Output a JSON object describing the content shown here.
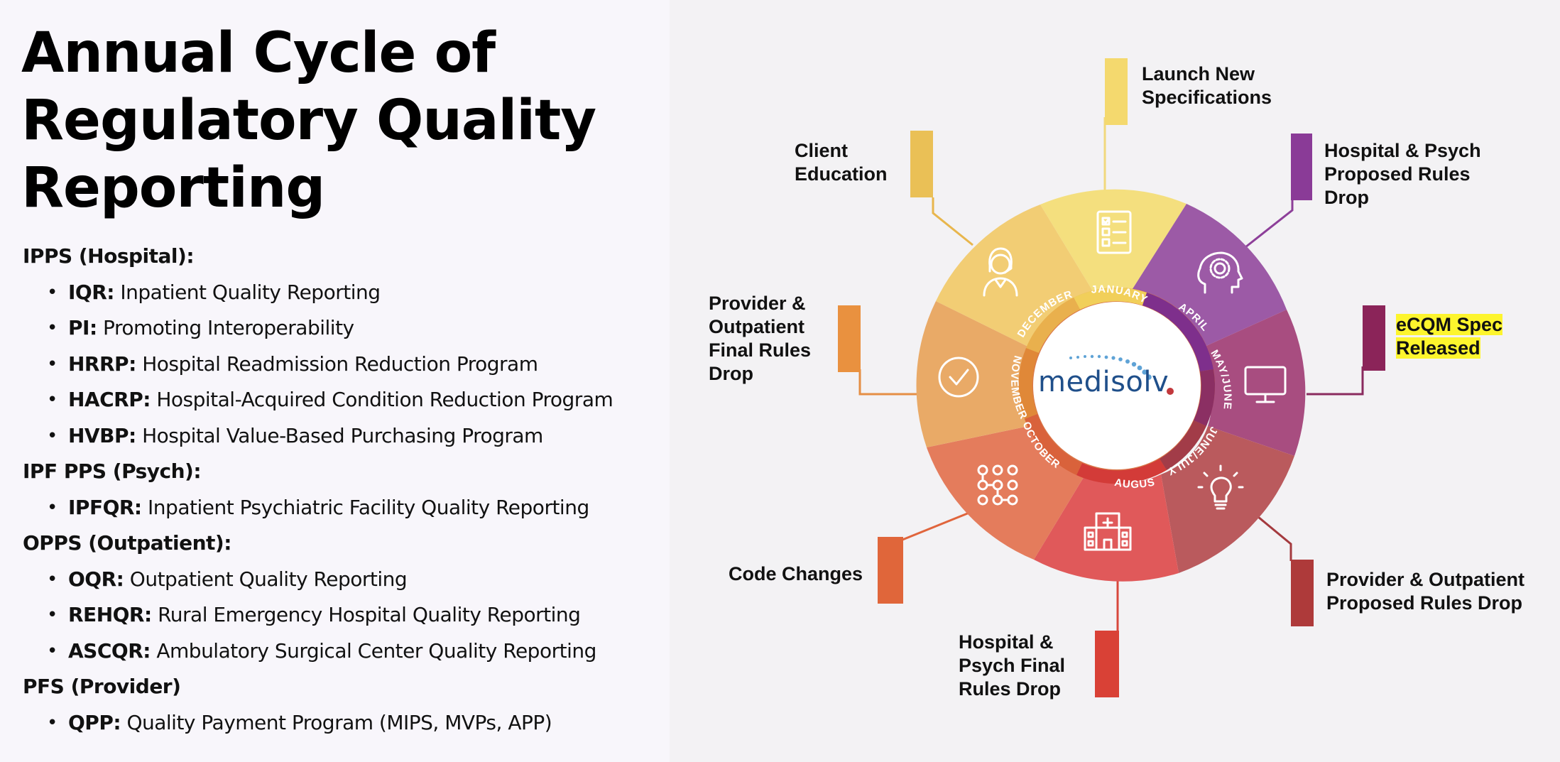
{
  "title": "Annual Cycle of Regulatory Quality Reporting",
  "sections": [
    {
      "heading": "IPPS (Hospital):",
      "items": [
        {
          "abbr": "IQR:",
          "desc": "Inpatient Quality Reporting"
        },
        {
          "abbr": "PI:",
          "desc": "Promoting Interoperability"
        },
        {
          "abbr": "HRRP:",
          "desc": "Hospital Readmission Reduction Program"
        },
        {
          "abbr": "HACRP:",
          "desc": "Hospital-Acquired Condition Reduction Program"
        },
        {
          "abbr": "HVBP:",
          "desc": "Hospital Value-Based Purchasing Program"
        }
      ]
    },
    {
      "heading": "IPF PPS (Psych):",
      "items": [
        {
          "abbr": "IPFQR:",
          "desc": "Inpatient Psychiatric Facility Quality Reporting"
        }
      ]
    },
    {
      "heading": "OPPS (Outpatient):",
      "items": [
        {
          "abbr": "OQR:",
          "desc": "Outpatient Quality Reporting"
        },
        {
          "abbr": "REHQR:",
          "desc": "Rural Emergency Hospital Quality Reporting"
        },
        {
          "abbr": "ASCQR:",
          "desc": "Ambulatory Surgical Center Quality Reporting"
        }
      ]
    },
    {
      "heading": "PFS (Provider)",
      "items": [
        {
          "abbr": "QPP:",
          "desc": "Quality Payment Program (MIPS, MVPs, APP)"
        }
      ]
    }
  ],
  "logo": "medisolv",
  "months": [
    "JANUARY",
    "APRIL",
    "MAY/JUNE",
    "JUNE/JULY",
    "AUGUST",
    "OCTOBER",
    "NOVEMBER",
    "DECEMBER"
  ],
  "callouts": {
    "launch": "Launch New\nSpecifications",
    "hospital_proposed": "Hospital & Psych\nProposed Rules\nDrop",
    "ecqm": "eCQM Spec\nReleased",
    "provider_proposed": "Provider & Outpatient\nProposed Rules Drop",
    "hospital_final": "Hospital &\nPsych Final\nRules Drop",
    "code_changes": "Code Changes",
    "provider_final": "Provider &\nOutpatient\nFinal Rules\nDrop",
    "client_education": "Client\nEducation"
  },
  "colors": {
    "launch": "#f4df7e",
    "hospital_proposed": "#9c5aa6",
    "ecqm": "#a84d80",
    "provider_proposed": "#ba5a5d",
    "hospital_final": "#e0595a",
    "code_changes": "#e47c5c",
    "provider_final": "#e9aa67",
    "client_education": "#f2cd74",
    "highlight": "#fdf52d",
    "logo_text": "#1f4f8a",
    "logo_dots": "#5fa3d6",
    "logo_red_dot": "#c2383c"
  }
}
